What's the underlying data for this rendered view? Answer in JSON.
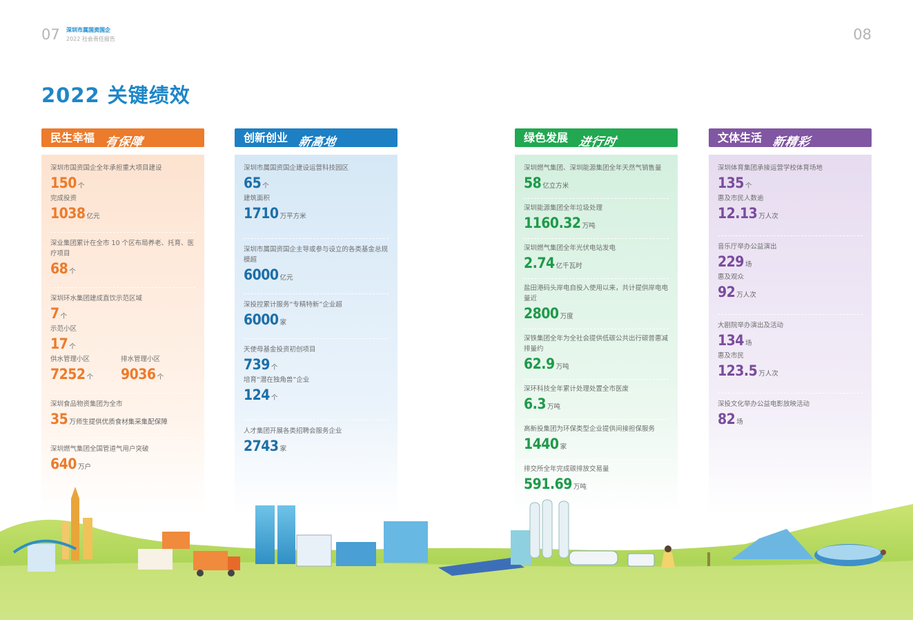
{
  "header": {
    "page_left": "07",
    "page_right": "08",
    "org": "深圳市属国资国企",
    "subtitle": "2022 社会责任报告"
  },
  "title": "2022 关键绩效",
  "sections": [
    {
      "title": "民生幸福",
      "slogan": "有保障",
      "color": "#ec7b2c",
      "items": [
        {
          "label": "深圳市国资国企全年承担重大项目建设",
          "value": "150",
          "unit": "个"
        },
        {
          "label": "完成投资",
          "value": "1038",
          "unit": "亿元"
        },
        {
          "label": "深业集团累计在全市 10 个区布局养老、托育、医疗项目",
          "value": "68",
          "unit": "个"
        },
        {
          "label": "深圳环水集团建成直饮示范区域",
          "value": "7",
          "unit": "个"
        },
        {
          "label": "示范小区",
          "value": "17",
          "unit": "个"
        },
        {
          "label_a": "供水管理小区",
          "value_a": "7252",
          "unit_a": "个",
          "label_b": "排水管理小区",
          "value_b": "9036",
          "unit_b": "个"
        },
        {
          "label": "深圳食品物资集团为全市",
          "value": "35",
          "unit": "万师生提供优质食材集采集配保障"
        },
        {
          "label": "深圳燃气集团全国管道气用户突破",
          "value": "640",
          "unit": "万户"
        }
      ]
    },
    {
      "title": "创新创业",
      "slogan": "新高地",
      "color": "#1d7fc4",
      "items": [
        {
          "label": "深圳市属国资国企建设运营科技园区",
          "value": "65",
          "unit": "个"
        },
        {
          "label": "建筑面积",
          "value": "1710",
          "unit": "万平方米"
        },
        {
          "label": "深圳市属国资国企主导或参与设立的各类基金总规模超",
          "value": "6000",
          "unit": "亿元"
        },
        {
          "label": "深投控累计服务“专精特新”企业超",
          "value": "6000",
          "unit": "家"
        },
        {
          "label": "天使母基金投资初创项目",
          "value": "739",
          "unit": "个"
        },
        {
          "label": "培育“潜在独角兽”企业",
          "value": "124",
          "unit": "个"
        },
        {
          "label": "人才集团开展各类招聘会服务企业",
          "value": "2743",
          "unit": "家"
        }
      ]
    },
    {
      "title": "绿色发展",
      "slogan": "进行时",
      "color": "#21a851",
      "items": [
        {
          "label": "深圳燃气集团、深圳能源集团全年天然气销售量",
          "value": "58",
          "unit": "亿立方米"
        },
        {
          "label": "深圳能源集团全年垃圾处理",
          "value": "1160.32",
          "unit": "万吨"
        },
        {
          "label": "深圳燃气集团全年光伏电站发电",
          "value": "2.74",
          "unit": "亿千瓦时"
        },
        {
          "label": "盐田港码头岸电自投入使用以来，共计提供岸电电量近",
          "value": "2800",
          "unit": "万度"
        },
        {
          "label": "深铁集团全年为全社会提供低碳公共出行碳普惠减排量约",
          "value": "62.9",
          "unit": "万吨"
        },
        {
          "label": "深环科技全年累计处理处置全市医废",
          "value": "6.3",
          "unit": "万吨"
        },
        {
          "label": "高新投集团为环保类型企业提供间接担保服务",
          "value": "1440",
          "unit": "家"
        },
        {
          "label": "排交所全年完成碳排放交易量",
          "value": "591.69",
          "unit": "万吨"
        }
      ]
    },
    {
      "title": "文体生活",
      "slogan": "新精彩",
      "color": "#8156a3",
      "items": [
        {
          "label": "深圳体育集团承接运营学校体育场地",
          "value": "135",
          "unit": "个"
        },
        {
          "label": "惠及市民人数逾",
          "value": "12.13",
          "unit": "万人次"
        },
        {
          "label": "音乐厅举办公益演出",
          "value": "229",
          "unit": "场"
        },
        {
          "label": "惠及观众",
          "value": "92",
          "unit": "万人次"
        },
        {
          "label": "大剧院举办演出及活动",
          "value": "134",
          "unit": "场"
        },
        {
          "label": "惠及市民",
          "value": "123.5",
          "unit": "万人次"
        },
        {
          "label": "深投文化举办公益电影放映活动",
          "value": "82",
          "unit": "场"
        }
      ]
    }
  ]
}
